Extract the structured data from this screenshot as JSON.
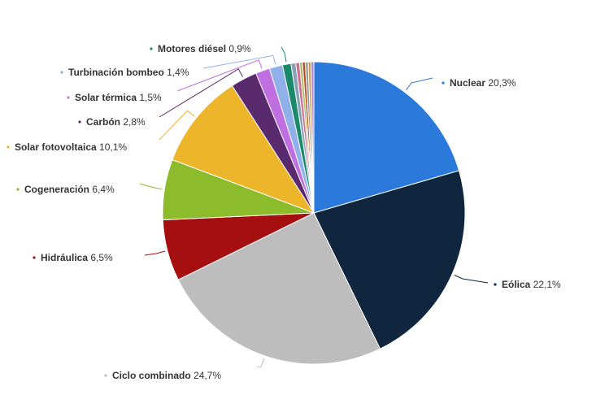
{
  "chart_data": {
    "type": "pie",
    "slices": [
      {
        "name": "Nuclear",
        "value": 20.3,
        "label": "20,3%",
        "color": "#2a79db"
      },
      {
        "name": "Eólica",
        "value": 22.1,
        "label": "22,1%",
        "color": "#0f263e"
      },
      {
        "name": "Ciclo combinado",
        "value": 24.7,
        "label": "24,7%",
        "color": "#bdbdbd"
      },
      {
        "name": "Hidráulica",
        "value": 6.5,
        "label": "6,5%",
        "color": "#a50f0f"
      },
      {
        "name": "Cogeneración",
        "value": 6.4,
        "label": "6,4%",
        "color": "#8cbb2c"
      },
      {
        "name": "Solar fotovoltaica",
        "value": 10.1,
        "label": "10,1%",
        "color": "#ecb52a"
      },
      {
        "name": "Carbón",
        "value": 2.8,
        "label": "2,8%",
        "color": "#5a2a6e"
      },
      {
        "name": "Solar térmica",
        "value": 1.5,
        "label": "1,5%",
        "color": "#c06fe0"
      },
      {
        "name": "Turbinación bombeo",
        "value": 1.4,
        "label": "1,4%",
        "color": "#8fb0e8"
      },
      {
        "name": "Motores diésel",
        "value": 0.9,
        "label": "0,9%",
        "color": "#1a8a6a"
      },
      {
        "name": "",
        "value": 0.5,
        "label": "",
        "color": "#8aa0b8"
      },
      {
        "name": "",
        "value": 0.4,
        "label": "",
        "color": "#d07090"
      },
      {
        "name": "",
        "value": 0.3,
        "label": "",
        "color": "#a8c060"
      },
      {
        "name": "",
        "value": 0.3,
        "label": "",
        "color": "#c04a20"
      },
      {
        "name": "",
        "value": 0.3,
        "label": "",
        "color": "#9a9a9a"
      },
      {
        "name": "",
        "value": 0.3,
        "label": "",
        "color": "#d09a50"
      },
      {
        "name": "",
        "value": 0.3,
        "label": "",
        "color": "#b08ad0"
      }
    ]
  }
}
